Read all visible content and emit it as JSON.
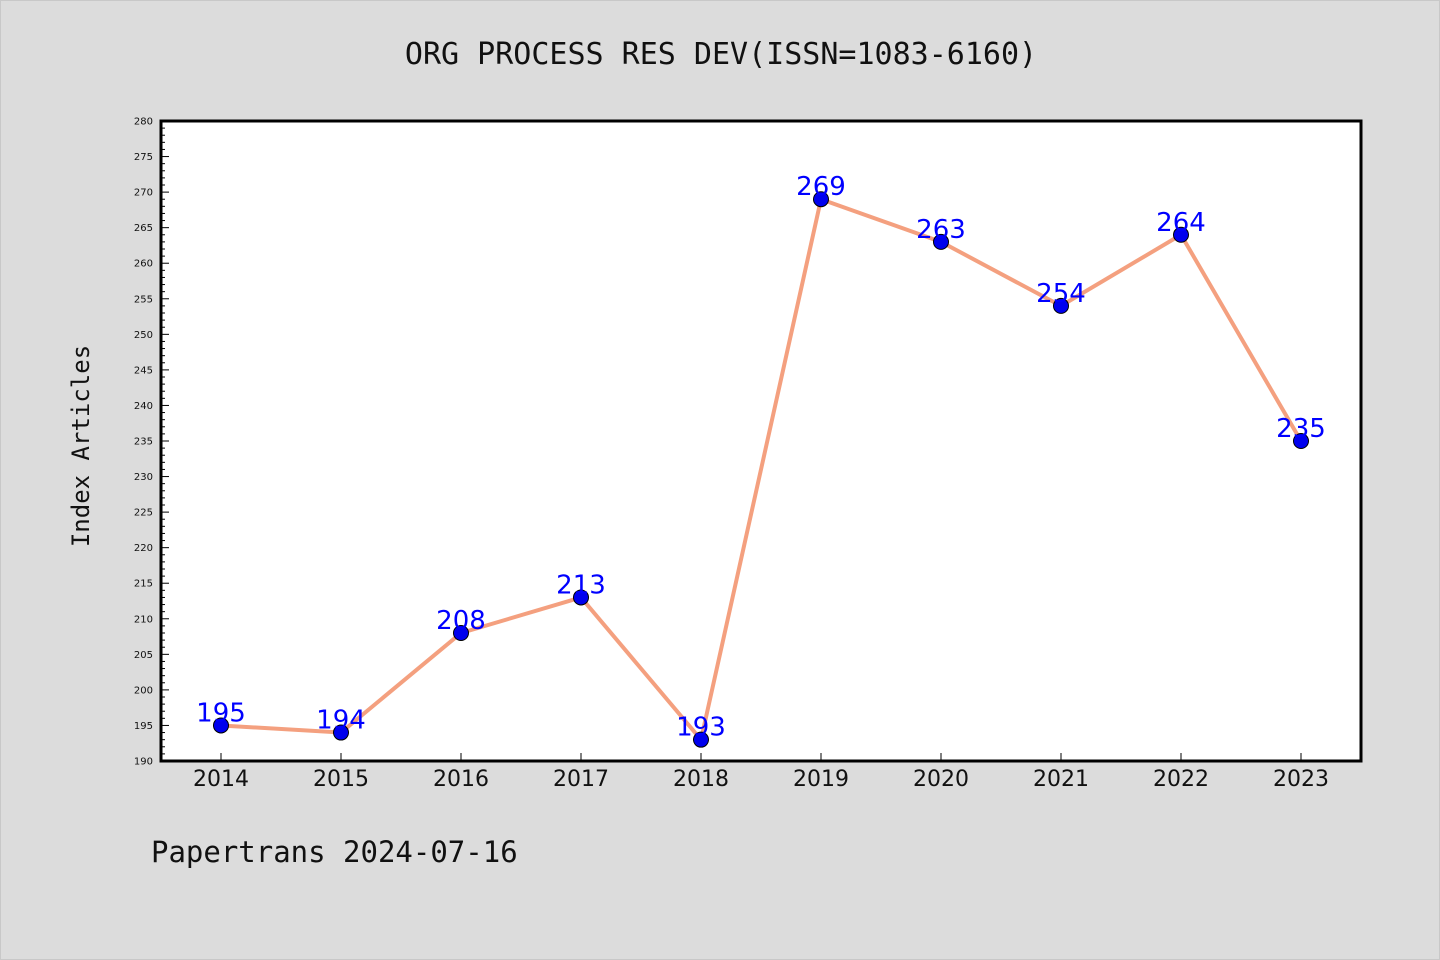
{
  "colors": {
    "background": "#dcdcdc",
    "plot_background": "#ffffff",
    "line": "#f4a07f",
    "marker_fill": "#0000ee",
    "data_label": "#0000ff"
  },
  "footer": {
    "note": "Papertrans 2024-07-16"
  },
  "chart_data": {
    "type": "line",
    "title": "ORG PROCESS RES DEV(ISSN=1083-6160)",
    "xlabel": "",
    "ylabel": "Index Articles",
    "categories": [
      "2014",
      "2015",
      "2016",
      "2017",
      "2018",
      "2019",
      "2020",
      "2021",
      "2022",
      "2023"
    ],
    "values": [
      195,
      194,
      208,
      213,
      193,
      269,
      263,
      254,
      264,
      235
    ],
    "ylim": [
      190,
      280
    ],
    "yticks": [
      "190",
      "195",
      "200",
      "205",
      "210",
      "215",
      "220",
      "225",
      "230",
      "235",
      "240",
      "245",
      "250",
      "255",
      "260",
      "265",
      "270",
      "275",
      "280"
    ],
    "data_labels": [
      "195",
      "194",
      "208",
      "213",
      "193",
      "269",
      "263",
      "254",
      "264",
      "235"
    ],
    "grid": false,
    "legend": "none"
  }
}
